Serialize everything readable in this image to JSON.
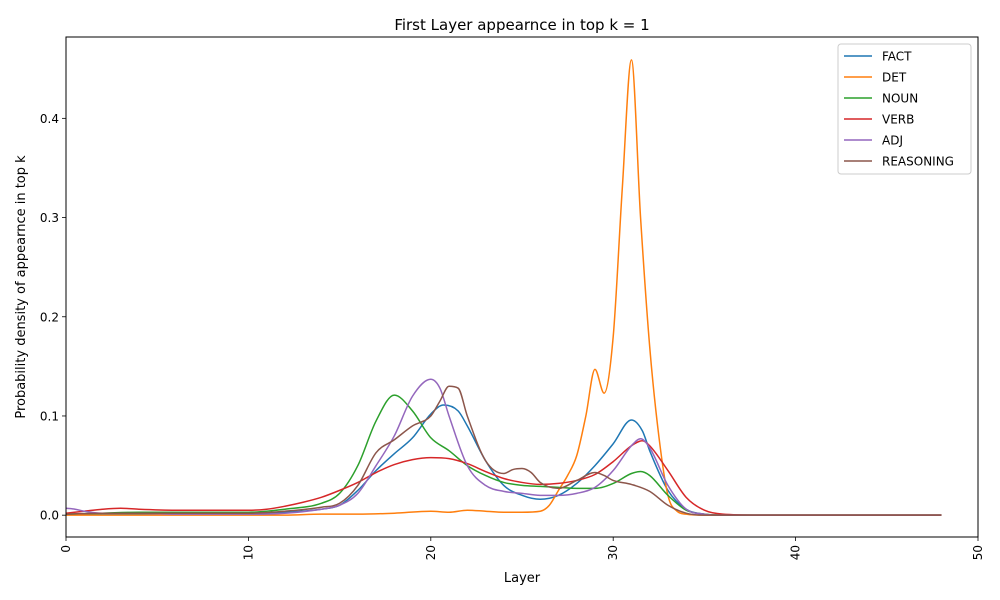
{
  "chart_data": {
    "type": "line",
    "title": "First Layer appearnce in top k = 1",
    "xlabel": "Layer",
    "ylabel": "Probability density of appearnce in top k",
    "xlim": [
      0,
      50
    ],
    "ylim": [
      -0.022,
      0.482
    ],
    "xticks": [
      0,
      10,
      20,
      30,
      40,
      50
    ],
    "yticks": [
      0.0,
      0.1,
      0.2,
      0.3,
      0.4
    ],
    "xtick_labels": [
      "0",
      "10",
      "20",
      "30",
      "40",
      "50"
    ],
    "ytick_labels": [
      "0.0",
      "0.1",
      "0.2",
      "0.3",
      "0.4"
    ],
    "grid": false,
    "legend_position": "top-right",
    "series": [
      {
        "name": "FACT",
        "color": "#1f77b4",
        "x": [
          0,
          2,
          4,
          6,
          8,
          10,
          12,
          14,
          15,
          16,
          17,
          18,
          19,
          20,
          20.7,
          21.5,
          22,
          23,
          24,
          25,
          26,
          27,
          28,
          29,
          30,
          31,
          31.6,
          32,
          33,
          34,
          35,
          36,
          38,
          40,
          44,
          48
        ],
        "y": [
          0.001,
          0.001,
          0.001,
          0.001,
          0.002,
          0.002,
          0.003,
          0.006,
          0.01,
          0.025,
          0.045,
          0.062,
          0.078,
          0.102,
          0.111,
          0.105,
          0.09,
          0.055,
          0.03,
          0.02,
          0.016,
          0.02,
          0.032,
          0.05,
          0.072,
          0.096,
          0.085,
          0.065,
          0.025,
          0.006,
          0.001,
          0.0,
          0.0,
          0.0,
          0.0,
          0.0
        ]
      },
      {
        "name": "DET",
        "color": "#ff7f0e",
        "x": [
          0,
          2,
          4,
          6,
          8,
          10,
          12,
          14,
          16,
          18,
          20,
          21,
          22,
          23,
          24,
          25,
          26,
          26.5,
          27,
          27.5,
          28,
          28.5,
          29,
          29.5,
          30,
          30.5,
          31,
          31.5,
          32,
          32.5,
          33,
          33.5,
          34,
          35,
          36,
          40,
          48
        ],
        "y": [
          0.0,
          0.0,
          0.0,
          0.0,
          0.0,
          0.0,
          0.0,
          0.001,
          0.001,
          0.002,
          0.004,
          0.003,
          0.005,
          0.004,
          0.003,
          0.003,
          0.004,
          0.01,
          0.025,
          0.04,
          0.06,
          0.1,
          0.147,
          0.123,
          0.18,
          0.33,
          0.459,
          0.3,
          0.17,
          0.08,
          0.02,
          0.004,
          0.001,
          0.0,
          0.0,
          0.0,
          0.0
        ]
      },
      {
        "name": "NOUN",
        "color": "#2ca02c",
        "x": [
          0,
          2,
          4,
          6,
          8,
          10,
          12,
          14,
          15,
          16,
          17,
          18,
          19,
          20,
          21,
          22,
          23,
          24,
          25,
          26,
          27,
          28,
          29,
          30,
          31,
          31.5,
          32,
          33,
          34,
          35,
          36,
          38,
          40,
          48
        ],
        "y": [
          0.001,
          0.002,
          0.003,
          0.003,
          0.003,
          0.003,
          0.006,
          0.012,
          0.022,
          0.05,
          0.095,
          0.121,
          0.105,
          0.078,
          0.065,
          0.05,
          0.04,
          0.033,
          0.03,
          0.029,
          0.028,
          0.027,
          0.027,
          0.032,
          0.042,
          0.044,
          0.04,
          0.02,
          0.005,
          0.001,
          0.0,
          0.0,
          0.0,
          0.0
        ]
      },
      {
        "name": "VERB",
        "color": "#d62728",
        "x": [
          0,
          1,
          2,
          3,
          4,
          6,
          8,
          10,
          11,
          12,
          13,
          14,
          15,
          16,
          17,
          18,
          19,
          20,
          21,
          22,
          23,
          24,
          25,
          26,
          27,
          28,
          29,
          30,
          31,
          31.6,
          32,
          33,
          34,
          35,
          36,
          38,
          40,
          48
        ],
        "y": [
          0.002,
          0.004,
          0.006,
          0.007,
          0.006,
          0.005,
          0.005,
          0.005,
          0.006,
          0.009,
          0.013,
          0.018,
          0.025,
          0.033,
          0.043,
          0.051,
          0.056,
          0.058,
          0.057,
          0.052,
          0.044,
          0.037,
          0.033,
          0.031,
          0.032,
          0.035,
          0.041,
          0.054,
          0.07,
          0.075,
          0.07,
          0.045,
          0.018,
          0.005,
          0.001,
          0.0,
          0.0,
          0.0
        ]
      },
      {
        "name": "ADJ",
        "color": "#9467bd",
        "x": [
          0,
          0.5,
          1,
          2,
          4,
          6,
          8,
          10,
          12,
          14,
          15,
          16,
          17,
          18,
          19,
          20,
          20.5,
          21,
          22,
          23,
          24,
          25,
          26,
          27,
          28,
          29,
          30,
          31,
          31.5,
          32,
          33,
          34,
          35,
          36,
          40,
          48
        ],
        "y": [
          0.007,
          0.006,
          0.004,
          0.002,
          0.002,
          0.001,
          0.001,
          0.001,
          0.002,
          0.006,
          0.01,
          0.022,
          0.05,
          0.08,
          0.12,
          0.137,
          0.128,
          0.1,
          0.05,
          0.03,
          0.024,
          0.022,
          0.02,
          0.02,
          0.022,
          0.028,
          0.045,
          0.07,
          0.077,
          0.068,
          0.03,
          0.006,
          0.001,
          0.0,
          0.0,
          0.0
        ]
      },
      {
        "name": "REASONING",
        "color": "#8c564b",
        "x": [
          0,
          2,
          4,
          6,
          8,
          10,
          12,
          14,
          15,
          16,
          17,
          18,
          19,
          20,
          20.5,
          21,
          21.5,
          22,
          23,
          24,
          24.5,
          25,
          25.5,
          26,
          27,
          28,
          29,
          29.5,
          30,
          31,
          32,
          33,
          34,
          35,
          36,
          40,
          48
        ],
        "y": [
          0.001,
          0.002,
          0.002,
          0.002,
          0.002,
          0.002,
          0.004,
          0.008,
          0.012,
          0.03,
          0.063,
          0.076,
          0.09,
          0.1,
          0.115,
          0.13,
          0.128,
          0.1,
          0.055,
          0.042,
          0.046,
          0.047,
          0.043,
          0.033,
          0.027,
          0.035,
          0.043,
          0.04,
          0.035,
          0.031,
          0.024,
          0.01,
          0.002,
          0.0,
          0.0,
          0.0,
          0.0
        ]
      }
    ]
  }
}
